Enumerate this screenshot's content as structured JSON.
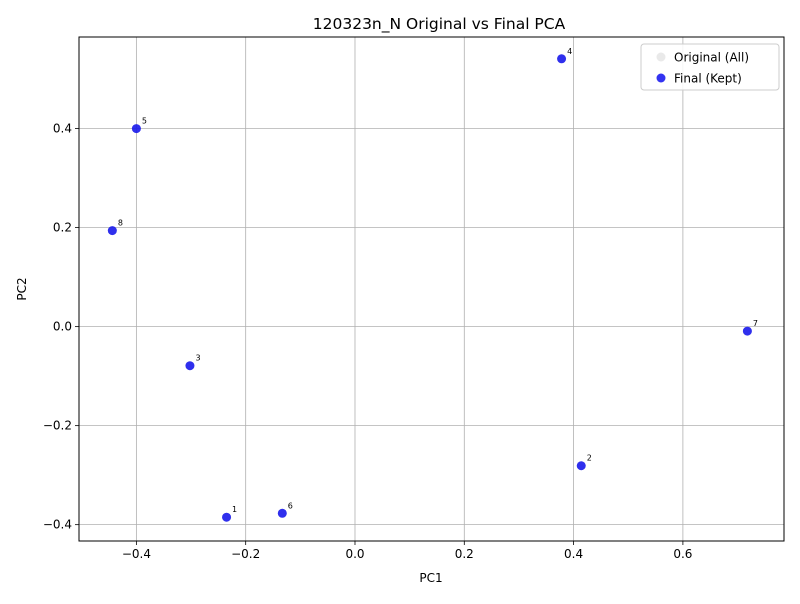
{
  "chart_data": {
    "type": "scatter",
    "title": "120323n_N Original vs Final PCA",
    "xlabel": "PC1",
    "ylabel": "PC2",
    "xlim": [
      -0.505,
      0.785
    ],
    "ylim": [
      -0.433,
      0.585
    ],
    "xticks": [
      -0.4,
      -0.2,
      0.0,
      0.2,
      0.4,
      0.6
    ],
    "xtick_labels": [
      "−0.4",
      "−0.2",
      "0.0",
      "0.2",
      "0.4",
      "0.6"
    ],
    "yticks": [
      -0.4,
      -0.2,
      0.0,
      0.2,
      0.4
    ],
    "ytick_labels": [
      "−0.4",
      "−0.2",
      "0.0",
      "0.2",
      "0.4"
    ],
    "grid": true,
    "legend_position": "top-right",
    "series": [
      {
        "name": "Original (All)",
        "color": "#d3d3d3",
        "points": [
          {
            "label": "1",
            "x": -0.235,
            "y": -0.385
          },
          {
            "label": "2",
            "x": 0.414,
            "y": -0.281
          },
          {
            "label": "3",
            "x": -0.302,
            "y": -0.079
          },
          {
            "label": "4",
            "x": 0.378,
            "y": 0.541
          },
          {
            "label": "5",
            "x": -0.4,
            "y": 0.4
          },
          {
            "label": "6",
            "x": -0.133,
            "y": -0.377
          },
          {
            "label": "7",
            "x": 0.718,
            "y": -0.009
          },
          {
            "label": "8",
            "x": -0.444,
            "y": 0.194
          }
        ]
      },
      {
        "name": "Final (Kept)",
        "color": "#0000ee",
        "points": [
          {
            "label": "1",
            "x": -0.235,
            "y": -0.385
          },
          {
            "label": "2",
            "x": 0.414,
            "y": -0.281
          },
          {
            "label": "3",
            "x": -0.302,
            "y": -0.079
          },
          {
            "label": "4",
            "x": 0.378,
            "y": 0.541
          },
          {
            "label": "5",
            "x": -0.4,
            "y": 0.4
          },
          {
            "label": "6",
            "x": -0.133,
            "y": -0.377
          },
          {
            "label": "7",
            "x": 0.718,
            "y": -0.009
          },
          {
            "label": "8",
            "x": -0.444,
            "y": 0.194
          }
        ]
      }
    ]
  }
}
